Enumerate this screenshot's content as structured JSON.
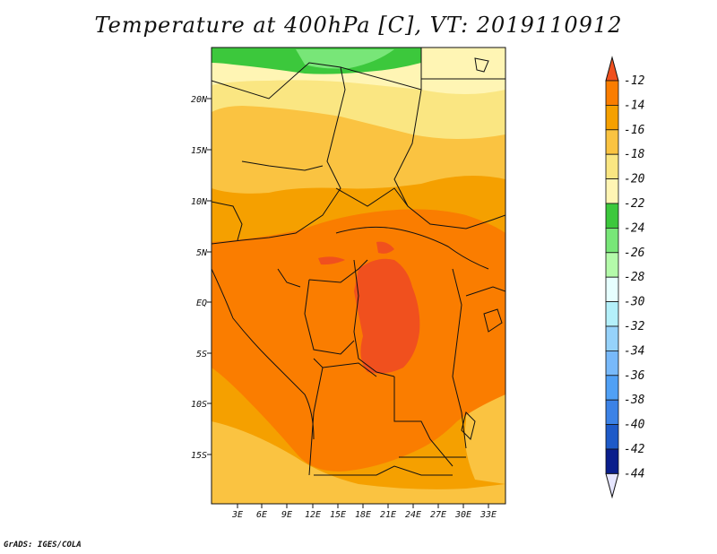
{
  "title": "Temperature at 400hPa [C], VT: 2019110912",
  "credit": "GrADS: IGES/COLA",
  "map": {
    "latitude_labels": [
      "20N",
      "15N",
      "10N",
      "5N",
      "EQ",
      "5S",
      "10S",
      "15S"
    ],
    "longitude_labels": [
      "3E",
      "6E",
      "9E",
      "12E",
      "15E",
      "18E",
      "21E",
      "24E",
      "27E",
      "30E",
      "33E"
    ]
  },
  "legend": {
    "unit": "C",
    "labels": [
      "-12",
      "-14",
      "-16",
      "-18",
      "-20",
      "-22",
      "-24",
      "-26",
      "-28",
      "-30",
      "-32",
      "-34",
      "-36",
      "-38",
      "-40",
      "-42",
      "-44"
    ],
    "colors": [
      "#f0501e",
      "#fa7d00",
      "#f5a000",
      "#fac341",
      "#fae682",
      "#fff5b4",
      "#3cc83c",
      "#78e678",
      "#b4faaa",
      "#e6ffff",
      "#b4f0fa",
      "#96d2fa",
      "#78b9fa",
      "#50a0f5",
      "#3c82e6",
      "#1e5ac8",
      "#0a1e8c",
      "#e6e6ff"
    ]
  }
}
